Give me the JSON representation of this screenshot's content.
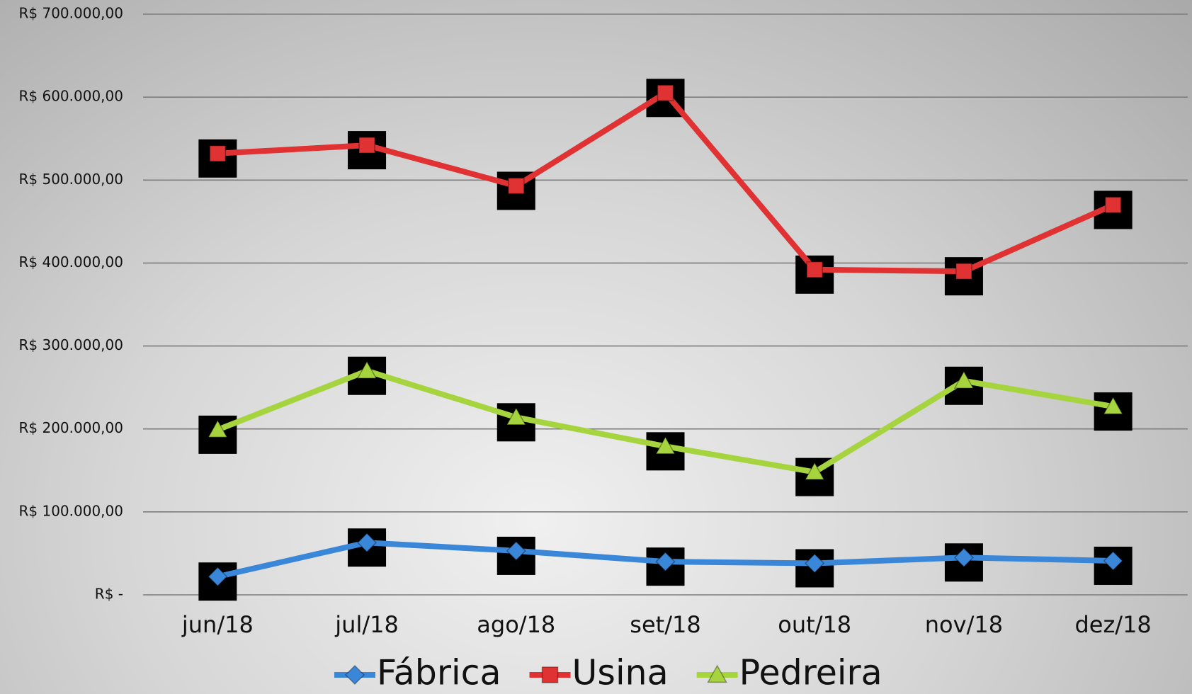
{
  "chart_data": {
    "type": "line",
    "categories": [
      "jun/18",
      "jul/18",
      "ago/18",
      "set/18",
      "out/18",
      "nov/18",
      "dez/18"
    ],
    "series": [
      {
        "name": "Fábrica",
        "color": "#3a86d8",
        "marker": "diamond",
        "values": [
          22000,
          63000,
          53000,
          40000,
          38000,
          45000,
          41000
        ]
      },
      {
        "name": "Usina",
        "color": "#e03232",
        "marker": "square",
        "values": [
          532000,
          542000,
          493000,
          605000,
          392000,
          390000,
          470000
        ]
      },
      {
        "name": "Pedreira",
        "color": "#a6d43f",
        "marker": "triangle",
        "values": [
          199000,
          270000,
          214000,
          179000,
          148000,
          258000,
          227000
        ]
      }
    ],
    "ylim": [
      0,
      700000
    ],
    "yticks": [
      {
        "value": 0,
        "label": "R$ -"
      },
      {
        "value": 100000,
        "label": "R$ 100.000,00"
      },
      {
        "value": 200000,
        "label": "R$ 200.000,00"
      },
      {
        "value": 300000,
        "label": "R$ 300.000,00"
      },
      {
        "value": 400000,
        "label": "R$ 400.000,00"
      },
      {
        "value": 500000,
        "label": "R$ 500.000,00"
      },
      {
        "value": 600000,
        "label": "R$ 600.000,00"
      },
      {
        "value": 700000,
        "label": "R$ 700.000,00"
      }
    ],
    "grid": true,
    "legend": "bottom"
  }
}
